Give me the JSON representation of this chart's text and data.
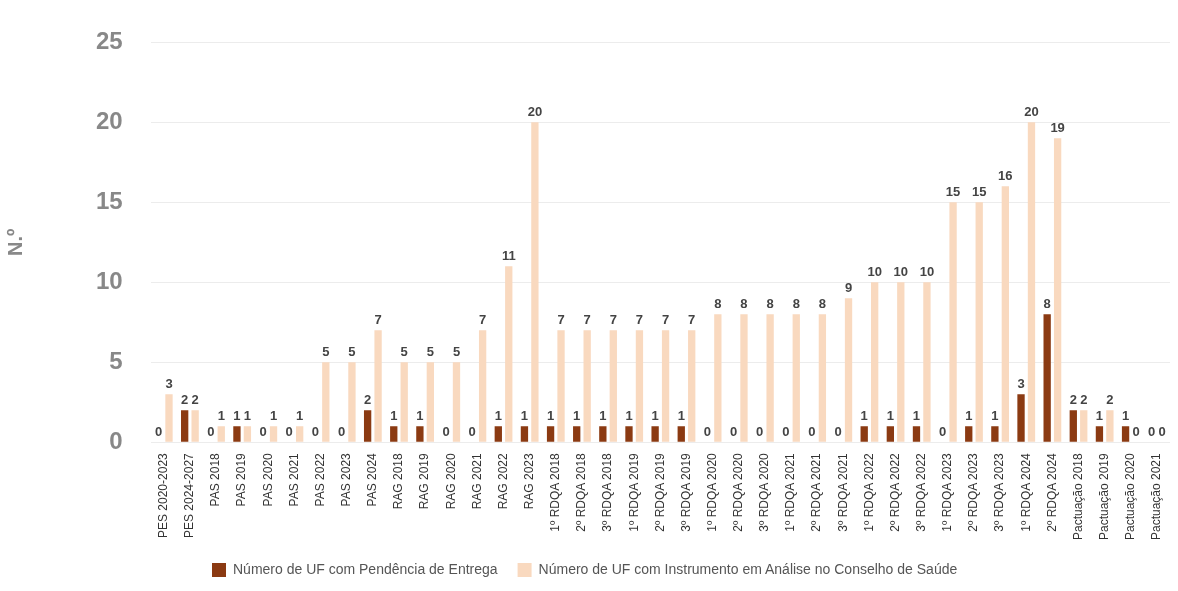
{
  "chart_data": {
    "type": "bar",
    "ylabel": "N.º",
    "categories": [
      "PES 2020-2023",
      "PES 2024-2027",
      "PAS 2018",
      "PAS 2019",
      "PAS 2020",
      "PAS 2021",
      "PAS 2022",
      "PAS 2023",
      "PAS 2024",
      "RAG 2018",
      "RAG 2019",
      "RAG 2020",
      "RAG 2021",
      "RAG 2022",
      "RAG 2023",
      "1º RDQA 2018",
      "2º RDQA 2018",
      "3º RDQA 2018",
      "1º RDQA 2019",
      "2º RDQA 2019",
      "3º RDQA 2019",
      "1º RDQA 2020",
      "2º RDQA 2020",
      "3º RDQA 2020",
      "1º RDQA 2021",
      "2º RDQA 2021",
      "3º RDQA 2021",
      "1º RDQA 2022",
      "2º RDQA 2022",
      "3º RDQA 2022",
      "1º RDQA 2023",
      "2º RDQA 2023",
      "3º RDQA 2023",
      "1º RDQA 2024",
      "2º RDQA 2024",
      "Pactuação 2018",
      "Pactuação 2019",
      "Pactuação 2020",
      "Pactuação 2021"
    ],
    "series": [
      {
        "name": "Número de UF com Pendência de Entrega",
        "color": "#8b3a12",
        "values": [
          0,
          2,
          0,
          1,
          0,
          0,
          0,
          0,
          2,
          1,
          1,
          0,
          0,
          1,
          1,
          1,
          1,
          1,
          1,
          1,
          1,
          0,
          0,
          0,
          0,
          0,
          0,
          1,
          1,
          1,
          0,
          1,
          1,
          3,
          8,
          2,
          1,
          1,
          0
        ]
      },
      {
        "name": "Número de UF com Instrumento em Análise no Conselho de Saúde",
        "color": "#f9d9bf",
        "values": [
          3,
          2,
          1,
          1,
          1,
          1,
          5,
          5,
          7,
          5,
          5,
          5,
          7,
          11,
          20,
          7,
          7,
          7,
          7,
          7,
          7,
          8,
          8,
          8,
          8,
          8,
          9,
          10,
          10,
          10,
          15,
          15,
          16,
          20,
          19,
          2,
          2,
          0,
          0
        ]
      }
    ],
    "ylim": [
      0,
      25
    ],
    "yticks": [
      0,
      5,
      10,
      15,
      20,
      25
    ],
    "grid": "y",
    "legend": "bottom",
    "data_labels": true
  }
}
